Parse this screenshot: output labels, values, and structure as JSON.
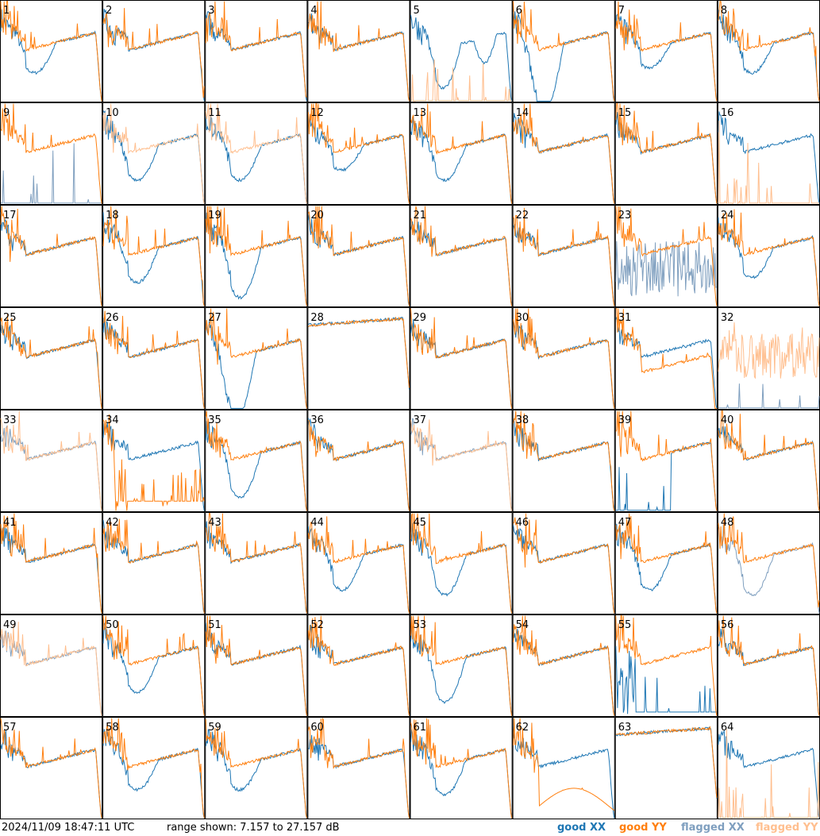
{
  "footer": {
    "timestamp": "2024/11/09 18:47:11 UTC",
    "range_text": "range shown: 7.157 to 27.157 dB"
  },
  "legend": {
    "good_xx": {
      "word": "good",
      "pol": "XX",
      "color": "#1f77b4"
    },
    "good_yy": {
      "word": "good",
      "pol": "YY",
      "color": "#ff7f0e"
    },
    "flagged_xx": {
      "word": "flagged",
      "pol": "XX",
      "color": "#7f9fbf"
    },
    "flagged_yy": {
      "word": "flagged",
      "pol": "YY",
      "color": "#ffbf8f"
    }
  },
  "chart_data": {
    "type": "line",
    "ylim": [
      7.157,
      27.157
    ],
    "y_unit": "dB",
    "grid": {
      "rows": 8,
      "cols": 8
    },
    "panels": [
      {
        "label": "1",
        "xx": "good",
        "yy": "good",
        "shape": "dip",
        "dip": 0.25
      },
      {
        "label": "2",
        "xx": "good",
        "yy": "good",
        "shape": "normal"
      },
      {
        "label": "3",
        "xx": "good",
        "yy": "good",
        "shape": "normal"
      },
      {
        "label": "4",
        "xx": "good",
        "yy": "good",
        "shape": "normal"
      },
      {
        "label": "5",
        "xx": "good",
        "yy": "flagged",
        "shape": "double_dip"
      },
      {
        "label": "6",
        "xx": "good",
        "yy": "good",
        "shape": "deep_dip"
      },
      {
        "label": "7",
        "xx": "good",
        "yy": "good",
        "shape": "dip",
        "dip": 0.2
      },
      {
        "label": "8",
        "xx": "good",
        "yy": "good",
        "shape": "dip",
        "dip": 0.25
      },
      {
        "label": "9",
        "xx": "flagged",
        "yy": "good",
        "shape": "xx_spikes"
      },
      {
        "label": "10",
        "xx": "good",
        "yy": "flagged",
        "shape": "dip",
        "dip": 0.3
      },
      {
        "label": "11",
        "xx": "good",
        "yy": "flagged",
        "shape": "dip",
        "dip": 0.3
      },
      {
        "label": "12",
        "xx": "good",
        "yy": "good",
        "shape": "dip",
        "dip": 0.2
      },
      {
        "label": "13",
        "xx": "good",
        "yy": "good",
        "shape": "dip",
        "dip": 0.3
      },
      {
        "label": "14",
        "xx": "good",
        "yy": "good",
        "shape": "normal"
      },
      {
        "label": "15",
        "xx": "good",
        "yy": "good",
        "shape": "normal"
      },
      {
        "label": "16",
        "xx": "good",
        "yy": "flagged",
        "shape": "yy_flat"
      },
      {
        "label": "17",
        "xx": "good",
        "yy": "good",
        "shape": "normal"
      },
      {
        "label": "18",
        "xx": "good",
        "yy": "good",
        "shape": "dip",
        "dip": 0.3
      },
      {
        "label": "19",
        "xx": "good",
        "yy": "good",
        "shape": "dip",
        "dip": 0.45
      },
      {
        "label": "20",
        "xx": "good",
        "yy": "good",
        "shape": "normal"
      },
      {
        "label": "21",
        "xx": "good",
        "yy": "good",
        "shape": "normal"
      },
      {
        "label": "22",
        "xx": "good",
        "yy": "good",
        "shape": "normal"
      },
      {
        "label": "23",
        "xx": "flagged",
        "yy": "good",
        "shape": "xx_noisy"
      },
      {
        "label": "24",
        "xx": "good",
        "yy": "good",
        "shape": "dip",
        "dip": 0.25
      },
      {
        "label": "25",
        "xx": "good",
        "yy": "good",
        "shape": "normal"
      },
      {
        "label": "26",
        "xx": "good",
        "yy": "good",
        "shape": "normal"
      },
      {
        "label": "27",
        "xx": "good",
        "yy": "good",
        "shape": "deep_dip"
      },
      {
        "label": "28",
        "xx": "good",
        "yy": "good",
        "shape": "flat_top"
      },
      {
        "label": "29",
        "xx": "good",
        "yy": "good",
        "shape": "normal"
      },
      {
        "label": "30",
        "xx": "good",
        "yy": "good",
        "shape": "normal"
      },
      {
        "label": "31",
        "xx": "good",
        "yy": "good",
        "shape": "split"
      },
      {
        "label": "32",
        "xx": "flagged",
        "yy": "flagged",
        "shape": "yy_noisy"
      },
      {
        "label": "33",
        "xx": "flagged",
        "yy": "flagged",
        "shape": "normal"
      },
      {
        "label": "34",
        "xx": "good",
        "yy": "good",
        "shape": "yy_low"
      },
      {
        "label": "35",
        "xx": "good",
        "yy": "good",
        "shape": "dip",
        "dip": 0.4
      },
      {
        "label": "36",
        "xx": "good",
        "yy": "good",
        "shape": "normal"
      },
      {
        "label": "37",
        "xx": "flagged",
        "yy": "flagged",
        "shape": "normal"
      },
      {
        "label": "38",
        "xx": "good",
        "yy": "good",
        "shape": "normal"
      },
      {
        "label": "39",
        "xx": "good",
        "yy": "good",
        "shape": "xx_spikes_low"
      },
      {
        "label": "40",
        "xx": "good",
        "yy": "good",
        "shape": "normal"
      },
      {
        "label": "41",
        "xx": "good",
        "yy": "good",
        "shape": "normal"
      },
      {
        "label": "42",
        "xx": "good",
        "yy": "good",
        "shape": "normal"
      },
      {
        "label": "43",
        "xx": "good",
        "yy": "good",
        "shape": "normal"
      },
      {
        "label": "44",
        "xx": "good",
        "yy": "good",
        "shape": "dip",
        "dip": 0.3
      },
      {
        "label": "45",
        "xx": "good",
        "yy": "good",
        "shape": "dip",
        "dip": 0.35
      },
      {
        "label": "46",
        "xx": "good",
        "yy": "good",
        "shape": "normal"
      },
      {
        "label": "47",
        "xx": "good",
        "yy": "good",
        "shape": "dip",
        "dip": 0.3
      },
      {
        "label": "48",
        "xx": "flagged",
        "yy": "good",
        "shape": "dip",
        "dip": 0.35
      },
      {
        "label": "49",
        "xx": "flagged",
        "yy": "flagged",
        "shape": "normal"
      },
      {
        "label": "50",
        "xx": "good",
        "yy": "good",
        "shape": "dip",
        "dip": 0.3
      },
      {
        "label": "51",
        "xx": "good",
        "yy": "good",
        "shape": "normal"
      },
      {
        "label": "52",
        "xx": "good",
        "yy": "good",
        "shape": "normal"
      },
      {
        "label": "53",
        "xx": "good",
        "yy": "good",
        "shape": "dip",
        "dip": 0.4
      },
      {
        "label": "54",
        "xx": "good",
        "yy": "good",
        "shape": "normal"
      },
      {
        "label": "55",
        "xx": "good",
        "yy": "good",
        "shape": "xx_low"
      },
      {
        "label": "56",
        "xx": "good",
        "yy": "good",
        "shape": "normal"
      },
      {
        "label": "57",
        "xx": "good",
        "yy": "good",
        "shape": "normal"
      },
      {
        "label": "58",
        "xx": "good",
        "yy": "good",
        "shape": "dip",
        "dip": 0.25
      },
      {
        "label": "59",
        "xx": "good",
        "yy": "good",
        "shape": "dip",
        "dip": 0.25
      },
      {
        "label": "60",
        "xx": "good",
        "yy": "good",
        "shape": "normal"
      },
      {
        "label": "61",
        "xx": "good",
        "yy": "good",
        "shape": "dip",
        "dip": 0.3
      },
      {
        "label": "62",
        "xx": "good",
        "yy": "good",
        "shape": "yy_low_hump"
      },
      {
        "label": "63",
        "xx": "good",
        "yy": "good",
        "shape": "flat_top"
      },
      {
        "label": "64",
        "xx": "good",
        "yy": "flagged",
        "shape": "yy_flat"
      }
    ]
  }
}
